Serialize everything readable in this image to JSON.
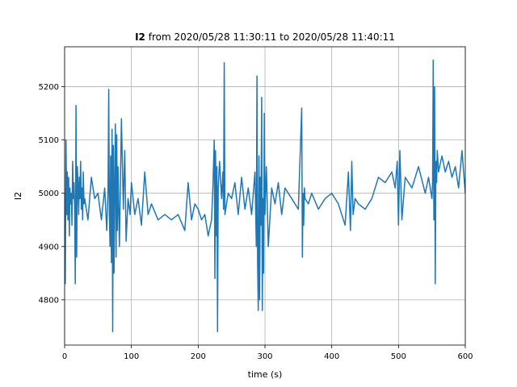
{
  "chart_data": {
    "type": "line",
    "title_bold": "I2",
    "title_rest": " from 2020/05/28 11:30:11 to 2020/05/28 11:40:11",
    "xlabel": "time (s)",
    "ylabel": "I2",
    "xlim": [
      0,
      600
    ],
    "ylim": [
      4715,
      5275
    ],
    "xticks": [
      0,
      100,
      200,
      300,
      400,
      500,
      600
    ],
    "yticks": [
      4800,
      4900,
      5000,
      5100,
      5200
    ],
    "grid": true,
    "line_color": "#1f77b4",
    "series": [
      {
        "x": [
          0,
          1,
          2,
          3,
          4,
          5,
          6,
          7,
          8,
          9,
          10,
          11,
          12,
          13,
          14,
          15,
          16,
          17,
          18,
          19,
          20,
          21,
          22,
          23,
          24,
          25,
          26,
          27,
          28,
          29,
          30,
          35,
          40,
          45,
          50,
          55,
          60,
          63,
          65,
          66,
          67,
          68,
          69,
          70,
          71,
          72,
          73,
          74,
          75,
          76,
          77,
          78,
          79,
          80,
          82,
          85,
          88,
          90,
          92,
          95,
          98,
          100,
          105,
          110,
          115,
          120,
          125,
          130,
          140,
          150,
          160,
          170,
          180,
          185,
          190,
          195,
          200,
          205,
          210,
          215,
          220,
          222,
          224,
          225,
          226,
          227,
          228,
          229,
          230,
          232,
          235,
          237,
          238,
          239,
          240,
          245,
          250,
          255,
          260,
          265,
          270,
          275,
          280,
          285,
          287,
          288,
          289,
          290,
          291,
          292,
          293,
          294,
          295,
          296,
          297,
          298,
          299,
          300,
          302,
          305,
          310,
          315,
          320,
          325,
          330,
          340,
          350,
          355,
          356,
          357,
          358,
          359,
          360,
          365,
          370,
          380,
          390,
          400,
          410,
          420,
          425,
          428,
          430,
          432,
          435,
          440,
          450,
          460,
          470,
          480,
          490,
          495,
          498,
          500,
          502,
          505,
          510,
          520,
          530,
          540,
          545,
          550,
          551,
          552,
          553,
          554,
          555,
          556,
          557,
          558,
          560,
          565,
          570,
          575,
          580,
          585,
          590,
          595,
          600
        ],
        "y": [
          5000,
          4830,
          5100,
          4960,
          5040,
          4950,
          5030,
          4920,
          5010,
          4980,
          5000,
          4940,
          5060,
          4990,
          5020,
          4970,
          4830,
          5165,
          4880,
          5050,
          5020,
          4960,
          5030,
          4990,
          5060,
          4970,
          5010,
          4950,
          5040,
          4980,
          4990,
          4950,
          5030,
          4990,
          5000,
          4950,
          5010,
          4930,
          5000,
          5195,
          4960,
          4900,
          5070,
          4870,
          5120,
          4740,
          5090,
          4850,
          5020,
          5130,
          4880,
          5110,
          4930,
          5050,
          4900,
          5140,
          4970,
          5080,
          4910,
          4990,
          4960,
          5020,
          4960,
          4990,
          4940,
          5040,
          4960,
          4980,
          4950,
          4960,
          4950,
          4960,
          4930,
          5020,
          4950,
          4980,
          4970,
          4950,
          4960,
          4920,
          4950,
          5010,
          5100,
          4840,
          5080,
          4920,
          5050,
          4740,
          5010,
          5060,
          4990,
          5040,
          4970,
          5245,
          4960,
          5000,
          4990,
          5020,
          4960,
          5030,
          4970,
          5010,
          4960,
          5040,
          4900,
          5220,
          4870,
          4780,
          5070,
          4800,
          5030,
          4940,
          5180,
          4780,
          4990,
          4850,
          5150,
          4960,
          5050,
          4900,
          5010,
          4980,
          5020,
          4960,
          5010,
          4990,
          4970,
          5160,
          4880,
          5000,
          4940,
          5010,
          4990,
          4980,
          5000,
          4970,
          4990,
          5000,
          4980,
          4940,
          5040,
          4930,
          5060,
          4960,
          4990,
          4980,
          4970,
          4990,
          5030,
          5020,
          5040,
          5010,
          5060,
          4940,
          5080,
          4950,
          5030,
          5010,
          5050,
          5000,
          5030,
          4990,
          5020,
          5250,
          4950,
          5200,
          4830,
          5060,
          5020,
          5080,
          5040,
          5070,
          5040,
          5060,
          5030,
          5050,
          5010,
          5080,
          5000
        ]
      }
    ]
  }
}
